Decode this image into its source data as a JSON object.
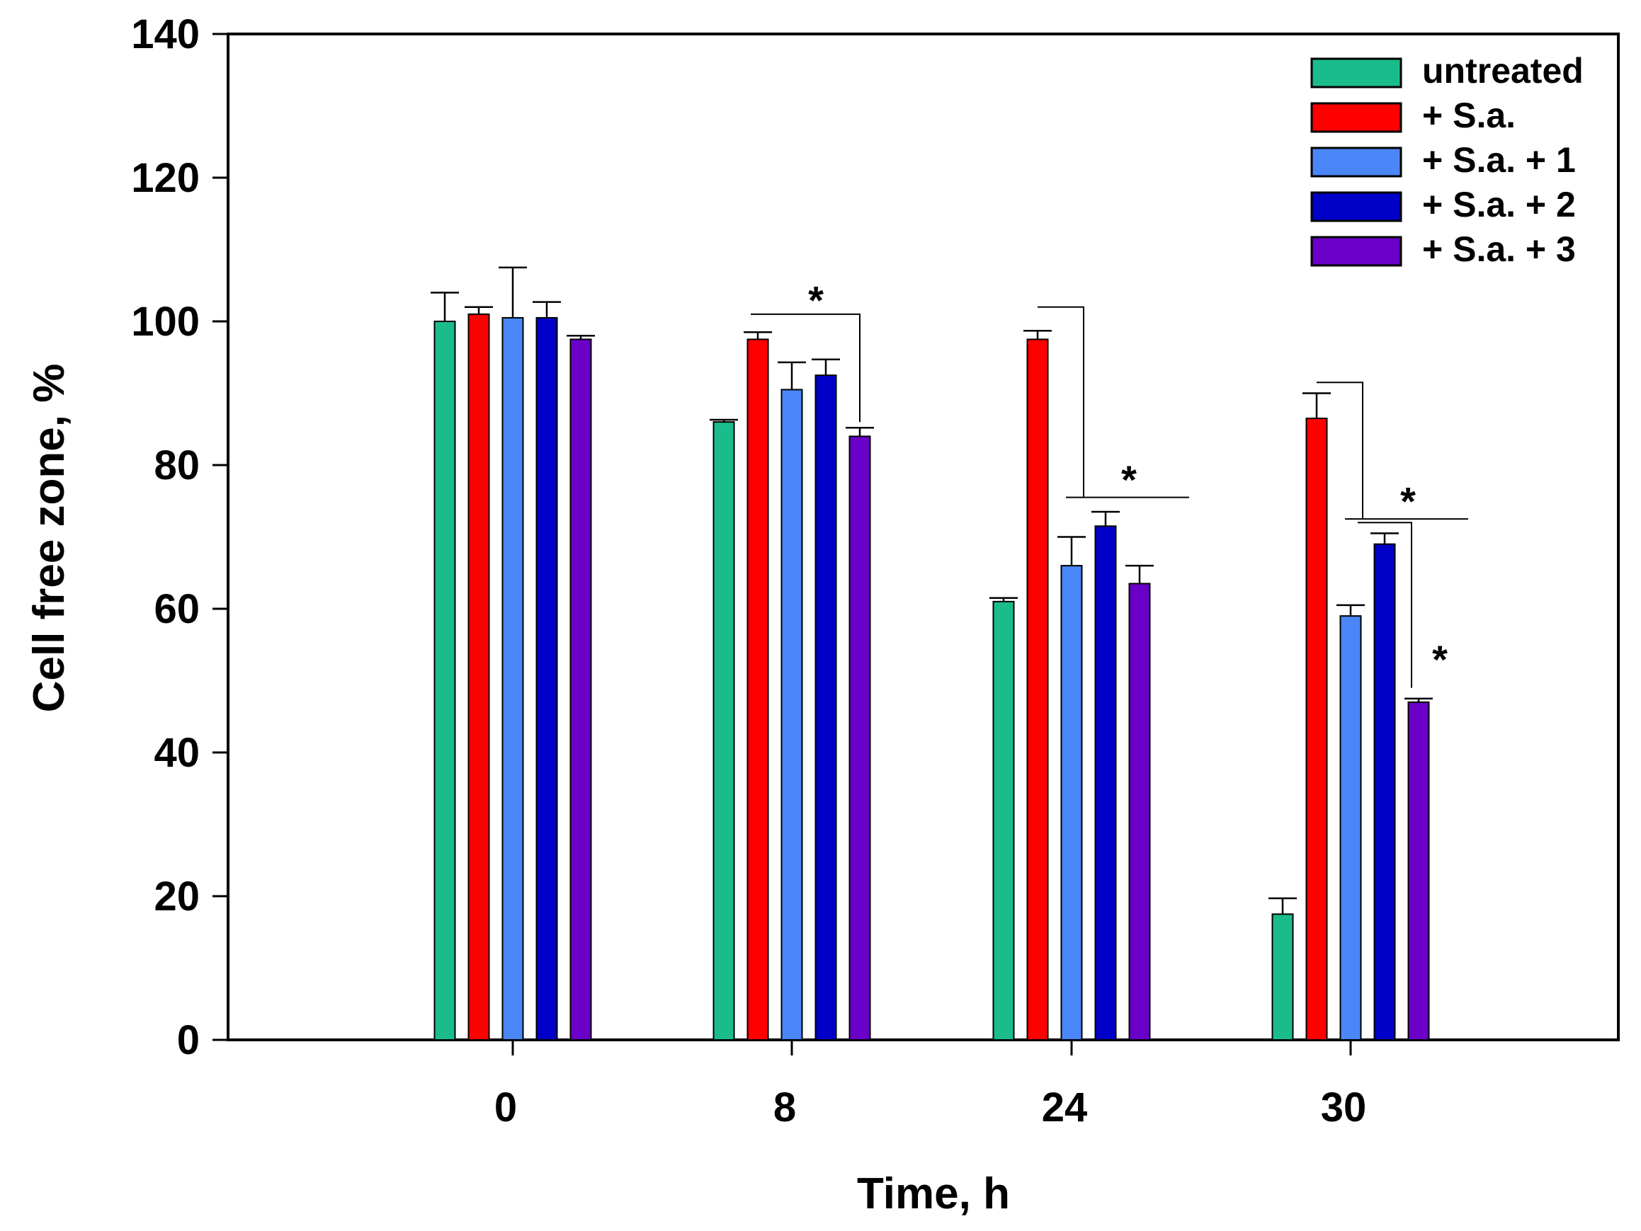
{
  "chart_data": {
    "type": "bar",
    "title": "",
    "xlabel": "Time, h",
    "ylabel": "Cell free zone, %",
    "ylim": [
      0,
      140
    ],
    "yticks": [
      0,
      20,
      40,
      60,
      80,
      100,
      120,
      140
    ],
    "categories": [
      "0",
      "8",
      "24",
      "30"
    ],
    "legend_position": "top-right",
    "series": [
      {
        "name": "untreated",
        "color": "#1ABC8C",
        "values": [
          100,
          86,
          61,
          17.5
        ],
        "errors": [
          4,
          0.3,
          0.5,
          2.2
        ]
      },
      {
        "name": "+ S.a.",
        "color": "#FF0000",
        "values": [
          101,
          97.5,
          97.5,
          86.5
        ],
        "errors": [
          1,
          1,
          1.2,
          3.5
        ]
      },
      {
        "name": "+ S.a. + 1",
        "color": "#4A86F7",
        "values": [
          100.5,
          90.5,
          66,
          59
        ],
        "errors": [
          7,
          3.8,
          4,
          1.5
        ]
      },
      {
        "name": "+ S.a. + 2",
        "color": "#0000C8",
        "values": [
          100.5,
          92.5,
          71.5,
          69
        ],
        "errors": [
          2.2,
          2.2,
          2,
          1.5
        ]
      },
      {
        "name": "+ S.a. + 3",
        "color": "#6A00C8",
        "values": [
          97.5,
          84,
          63.5,
          47
        ],
        "errors": [
          0.5,
          1.2,
          2.5,
          0.5
        ]
      }
    ],
    "annotations": [
      {
        "text": "*",
        "group": "8",
        "bracket_y": 101,
        "star_y": 104,
        "from_series": 1,
        "to_series": 4
      },
      {
        "text": "*",
        "group": "24",
        "bracket_y": 102,
        "star_y": 79,
        "from_series": 1,
        "to_series": 4
      },
      {
        "text": "*",
        "group": "30",
        "bracket_y": 91.5,
        "star_y": 76,
        "from_series": 1,
        "to_series": 4
      },
      {
        "text": "*",
        "group": "30",
        "bracket_y": 72,
        "star_y": 54,
        "from_series": 3,
        "to_series": 4
      }
    ]
  }
}
